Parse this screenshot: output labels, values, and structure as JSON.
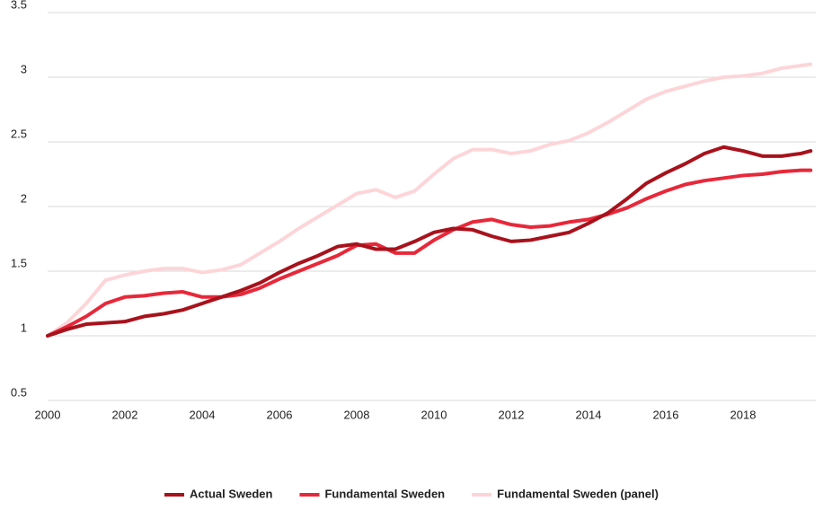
{
  "chart_data": {
    "type": "line",
    "x": [
      2000,
      2000.5,
      2001,
      2001.5,
      2002,
      2002.5,
      2003,
      2003.5,
      2004,
      2004.5,
      2005,
      2005.5,
      2006,
      2006.5,
      2007,
      2007.5,
      2008,
      2008.5,
      2009,
      2009.5,
      2010,
      2010.5,
      2011,
      2011.5,
      2012,
      2012.5,
      2013,
      2013.5,
      2014,
      2014.5,
      2015,
      2015.5,
      2016,
      2016.5,
      2017,
      2017.5,
      2018,
      2018.5,
      2019,
      2019.5,
      2019.75
    ],
    "series": [
      {
        "name": "Actual Sweden",
        "color": "#a8121c",
        "values": [
          1.0,
          1.05,
          1.09,
          1.1,
          1.11,
          1.15,
          1.17,
          1.2,
          1.25,
          1.3,
          1.35,
          1.41,
          1.49,
          1.56,
          1.62,
          1.69,
          1.71,
          1.67,
          1.67,
          1.73,
          1.8,
          1.83,
          1.82,
          1.77,
          1.73,
          1.74,
          1.77,
          1.8,
          1.87,
          1.95,
          2.06,
          2.18,
          2.26,
          2.33,
          2.41,
          2.46,
          2.43,
          2.39,
          2.39,
          2.41,
          2.43
        ]
      },
      {
        "name": "Fundamental Sweden",
        "color": "#e8283a",
        "values": [
          1.0,
          1.07,
          1.15,
          1.25,
          1.3,
          1.31,
          1.33,
          1.34,
          1.3,
          1.3,
          1.32,
          1.37,
          1.44,
          1.5,
          1.56,
          1.62,
          1.7,
          1.71,
          1.64,
          1.64,
          1.74,
          1.82,
          1.88,
          1.9,
          1.86,
          1.84,
          1.85,
          1.88,
          1.9,
          1.94,
          1.99,
          2.06,
          2.12,
          2.17,
          2.2,
          2.22,
          2.24,
          2.25,
          2.27,
          2.28,
          2.28
        ]
      },
      {
        "name": "Fundamental Sweden (panel)",
        "color": "#fdd5d8",
        "values": [
          1.0,
          1.1,
          1.25,
          1.43,
          1.47,
          1.5,
          1.52,
          1.52,
          1.49,
          1.51,
          1.55,
          1.64,
          1.73,
          1.83,
          1.92,
          2.01,
          2.1,
          2.13,
          2.07,
          2.12,
          2.25,
          2.37,
          2.44,
          2.44,
          2.41,
          2.43,
          2.48,
          2.51,
          2.57,
          2.65,
          2.74,
          2.83,
          2.89,
          2.93,
          2.97,
          3.0,
          3.01,
          3.03,
          3.07,
          3.09,
          3.1
        ]
      }
    ],
    "xlim": [
      2000,
      2020
    ],
    "xticks": [
      2000,
      2002,
      2004,
      2006,
      2008,
      2010,
      2012,
      2014,
      2016,
      2018
    ],
    "ylim": [
      0.5,
      3.5
    ],
    "yticks": [
      0.5,
      1,
      1.5,
      2,
      2.5,
      3,
      3.5
    ],
    "grid": true,
    "legend": "bottom"
  }
}
